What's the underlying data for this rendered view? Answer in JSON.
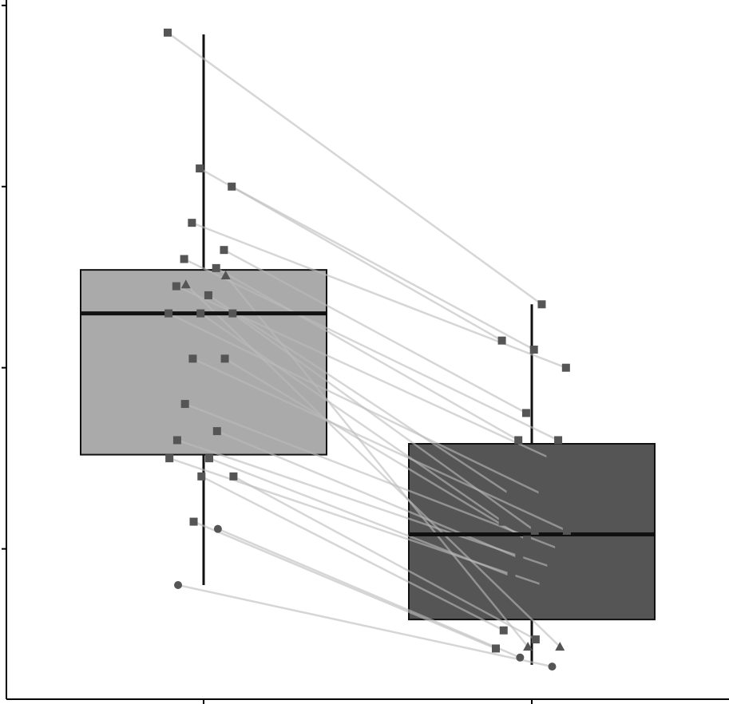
{
  "chart_data": {
    "type": "boxplot",
    "categories": [
      null,
      null
    ],
    "ylim": [
      0.17,
      4.03
    ],
    "yticks": [
      1,
      2,
      3,
      4
    ],
    "boxes": [
      {
        "whislo": 0.8,
        "q1": 1.52,
        "med": 2.3,
        "q3": 2.54,
        "whishi": 3.84,
        "color": "#aaaaaa"
      },
      {
        "whislo": 0.36,
        "q1": 0.61,
        "med": 1.08,
        "q3": 1.58,
        "whishi": 2.35,
        "color": "#555555"
      }
    ],
    "paired": {
      "before": [
        3.85,
        3.1,
        3.0,
        2.8,
        2.65,
        2.6,
        2.55,
        2.45,
        2.4,
        2.3,
        2.3,
        2.3,
        2.05,
        2.05,
        1.8,
        1.65,
        1.6,
        1.5,
        1.5,
        1.4,
        1.4,
        1.15,
        2.51,
        2.46,
        1.11,
        0.8
      ],
      "after": [
        2.35,
        2.15,
        2.1,
        2.0,
        1.75,
        1.6,
        1.6,
        1.5,
        1.3,
        1.3,
        1.15,
        1.1,
        1.1,
        1.05,
        1.0,
        0.95,
        0.9,
        0.85,
        0.8,
        0.55,
        0.5,
        0.45,
        0.46,
        0.46,
        0.4,
        0.35
      ],
      "markers": [
        "square",
        "square",
        "square",
        "square",
        "square",
        "square",
        "square",
        "square",
        "square",
        "square",
        "square",
        "square",
        "square",
        "square",
        "square",
        "square",
        "square",
        "square",
        "square",
        "square",
        "square",
        "square",
        "triangle",
        "triangle",
        "circle",
        "circle"
      ],
      "point_color": "#555555",
      "line_color": "#bbbbbb"
    }
  }
}
